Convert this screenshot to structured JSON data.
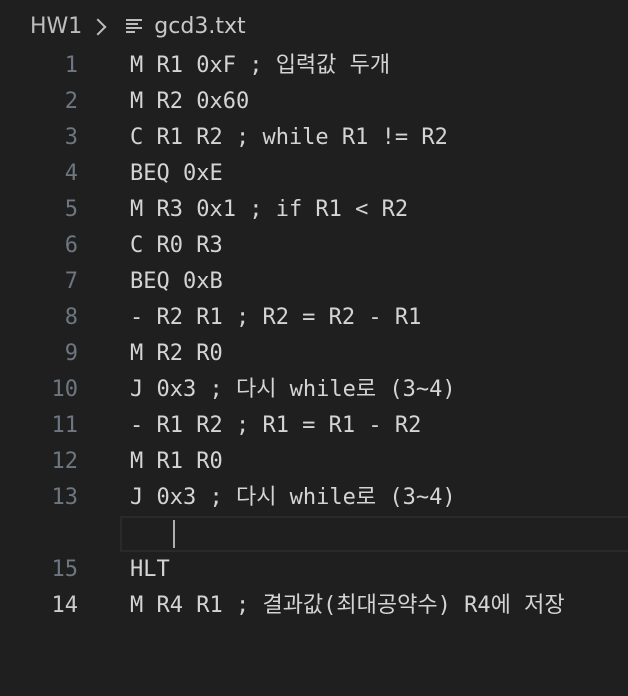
{
  "breadcrumb": {
    "folder": "HW1",
    "file": "gcd3.txt"
  },
  "editor": {
    "active_line": 14,
    "lines": [
      {
        "number": "1",
        "text": "M R1 0xF ; 입력값 두개"
      },
      {
        "number": "2",
        "text": "M R2 0x60"
      },
      {
        "number": "3",
        "text": "C R1 R2 ; while R1 != R2"
      },
      {
        "number": "4",
        "text": "BEQ 0xE"
      },
      {
        "number": "5",
        "text": "M R3 0x1 ; if R1 < R2"
      },
      {
        "number": "6",
        "text": "C R0 R3"
      },
      {
        "number": "7",
        "text": "BEQ 0xB"
      },
      {
        "number": "8",
        "text": "- R2 R1 ; R2 = R2 - R1"
      },
      {
        "number": "9",
        "text": "M R2 R0"
      },
      {
        "number": "10",
        "text": "J 0x3 ; 다시 while로 (3~4)"
      },
      {
        "number": "11",
        "text": "- R1 R2 ; R1 = R1 - R2"
      },
      {
        "number": "12",
        "text": "M R1 R0"
      },
      {
        "number": "13",
        "text": "J 0x3 ; 다시 while로 (3~4)"
      },
      {
        "number": "14",
        "text": "M R4 R1 ; 결과값(최대공약수) R4에 저장"
      },
      {
        "number": "15",
        "text": "HLT"
      }
    ]
  }
}
